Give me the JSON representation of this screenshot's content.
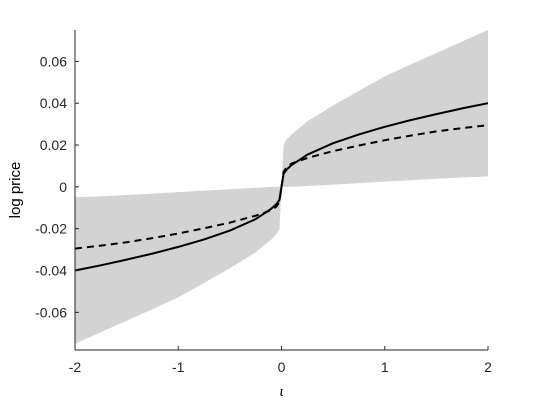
{
  "chart_data": {
    "type": "line",
    "title": "",
    "xlabel": "ι",
    "ylabel": "log price",
    "xlim": [
      -2,
      2
    ],
    "ylim": [
      -0.078,
      0.075
    ],
    "xticks": [
      -2,
      -1,
      0,
      1,
      2
    ],
    "xtick_labels": [
      "-2",
      "-1",
      "0",
      "1",
      "2"
    ],
    "yticks": [
      -0.06,
      -0.04,
      -0.02,
      0,
      0.02,
      0.04,
      0.06
    ],
    "ytick_labels": [
      "-0.06",
      "-0.04",
      "-0.02",
      "0",
      "0.02",
      "0.04",
      "0.06"
    ],
    "grid": false,
    "legend": "none",
    "x": [
      -2,
      -1.75,
      -1.5,
      -1.25,
      -1,
      -0.75,
      -0.5,
      -0.25,
      -0.1,
      -0.05,
      -0.02,
      0,
      0.02,
      0.05,
      0.1,
      0.25,
      0.5,
      0.75,
      1,
      1.25,
      1.5,
      1.75,
      2
    ],
    "series": [
      {
        "style": "solid",
        "color": "#000000",
        "values": [
          -0.04,
          -0.0375,
          -0.0348,
          -0.0319,
          -0.0287,
          -0.0251,
          -0.0209,
          -0.0154,
          -0.0105,
          -0.0083,
          -0.0063,
          0.0,
          0.0063,
          0.0083,
          0.0105,
          0.0154,
          0.0209,
          0.0251,
          0.0287,
          0.0319,
          0.0348,
          0.0375,
          0.04
        ]
      },
      {
        "style": "dashed",
        "color": "#000000",
        "values": [
          -0.0295,
          -0.0281,
          -0.0265,
          -0.0245,
          -0.0223,
          -0.0198,
          -0.0171,
          -0.0138,
          -0.0112,
          -0.0095,
          -0.0072,
          0.0,
          0.0072,
          0.0095,
          0.0112,
          0.0138,
          0.0171,
          0.0198,
          0.0223,
          0.0245,
          0.0265,
          0.0281,
          0.0295
        ]
      }
    ],
    "band": {
      "color": "#d3d3d3",
      "upper": [
        -0.005,
        -0.0045,
        -0.0039,
        -0.0032,
        -0.0025,
        -0.0018,
        -0.0011,
        -0.0004,
        0.0,
        0.0,
        0.0,
        0.0,
        0.0202,
        0.0227,
        0.0252,
        0.0313,
        0.0389,
        0.0459,
        0.0528,
        0.0585,
        0.064,
        0.0695,
        0.075
      ],
      "lower": [
        -0.075,
        -0.0695,
        -0.064,
        -0.0585,
        -0.0528,
        -0.0459,
        -0.0389,
        -0.0313,
        -0.0252,
        -0.0227,
        -0.0202,
        0.0,
        0.0,
        0.0,
        0.0,
        0.0004,
        0.0011,
        0.0018,
        0.0025,
        0.0032,
        0.0039,
        0.0045,
        0.005
      ]
    }
  }
}
